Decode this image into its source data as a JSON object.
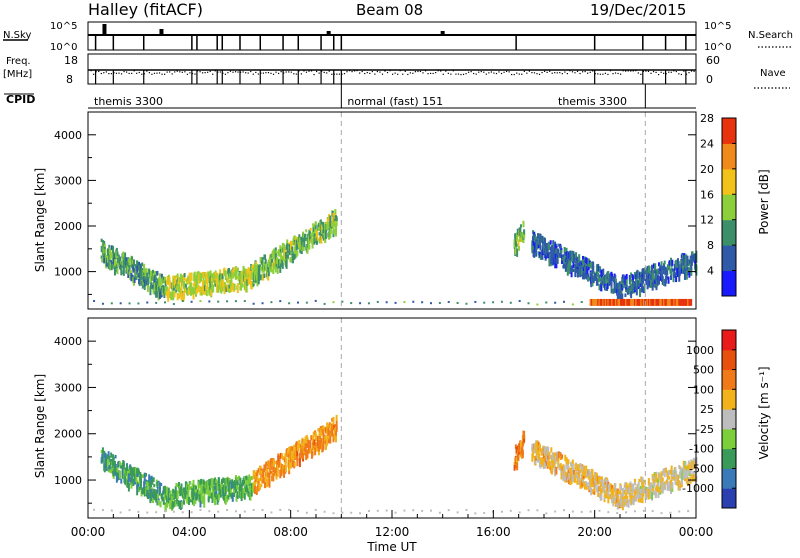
{
  "header": {
    "station": "Halley (fitACF)",
    "beam": "Beam 08",
    "date": "19/Dec/2015"
  },
  "status_panels": {
    "nsky_label": "N.Sky",
    "nsky_ticks": [
      "10^5",
      "10^0"
    ],
    "nsearch_label": "N.Search",
    "nsearch_ticks": [
      "10^5",
      "10^0"
    ],
    "freq_label_line1": "Freq.",
    "freq_label_line2": "[MHz]",
    "freq_ticks": [
      "18",
      "8"
    ],
    "nave_label": "Nave",
    "nave_ticks": [
      "60",
      "0"
    ],
    "cpid_label": "CPID",
    "cpid_segments": [
      {
        "label": "themis 3300",
        "start_hr": 0.0,
        "end_hr": 10.0
      },
      {
        "label": "normal (fast) 151",
        "start_hr": 10.0,
        "end_hr": 22.0
      },
      {
        "label": "themis 3300",
        "start_hr": 22.0,
        "end_hr": 24.0
      }
    ]
  },
  "chart_data": [
    {
      "type": "heatmap",
      "name": "power",
      "ylabel": "Slant Range [km]",
      "xlim": [
        0,
        24
      ],
      "ylim": [
        180,
        4500
      ],
      "yticks": [
        "1000",
        "2000",
        "3000",
        "4000"
      ],
      "colorbar_label": "Power [dB]",
      "colorbar_ticks": [
        "4",
        "8",
        "12",
        "16",
        "20",
        "24",
        "28"
      ],
      "colorbar_colors": [
        "#1a1aff",
        "#2e5aa8",
        "#3d8f6a",
        "#8ccf3a",
        "#f2c21a",
        "#f08a1a",
        "#e8340e"
      ],
      "dashed_lines_hr": [
        10.0,
        22.0
      ],
      "features": [
        {
          "t_start": 0.5,
          "t_end": 3.0,
          "r_start": 1500,
          "r_end": 700,
          "level": 0.35
        },
        {
          "t_start": 3.0,
          "t_end": 6.5,
          "r_start": 700,
          "r_end": 950,
          "level": 0.55
        },
        {
          "t_start": 6.5,
          "t_end": 9.8,
          "r_start": 1000,
          "r_end": 2200,
          "level": 0.45
        },
        {
          "t_start": 16.8,
          "t_end": 17.2,
          "r_start": 1600,
          "r_end": 2000,
          "level": 0.45
        },
        {
          "t_start": 17.5,
          "t_end": 21.0,
          "r_start": 1700,
          "r_end": 700,
          "level": 0.2
        },
        {
          "t_start": 21.0,
          "t_end": 24.0,
          "r_start": 700,
          "r_end": 1300,
          "level": 0.2
        }
      ],
      "ground_scatter": {
        "t_start": 19.8,
        "t_end": 23.8,
        "r_start": 250,
        "r_end": 400,
        "level": 0.95
      }
    },
    {
      "type": "heatmap",
      "name": "velocity",
      "xlabel": "Time UT",
      "ylabel": "Slant Range [km]",
      "xlim": [
        0,
        24
      ],
      "ylim": [
        180,
        4500
      ],
      "xticks": [
        "00:00",
        "04:00",
        "08:00",
        "12:00",
        "16:00",
        "20:00",
        "00:00"
      ],
      "yticks": [
        "1000",
        "2000",
        "3000",
        "4000"
      ],
      "colorbar_label": "Velocity [m s⁻¹]",
      "colorbar_ticks": [
        "1000",
        "500",
        "100",
        "25",
        "-25",
        "-100",
        "-500",
        "-1000"
      ],
      "colorbar_colors": [
        "#2a3fb0",
        "#3a7ab8",
        "#3a9a5a",
        "#7ccf3a",
        "#bdbdbd",
        "#f2b21a",
        "#f07a1a",
        "#e8500e",
        "#e81a1a"
      ],
      "dashed_lines_hr": [
        10.0,
        22.0
      ],
      "features": [
        {
          "t_start": 0.5,
          "t_end": 3.0,
          "r_start": 1500,
          "r_end": 700,
          "v_level": 0.25
        },
        {
          "t_start": 3.0,
          "t_end": 6.5,
          "r_start": 700,
          "r_end": 950,
          "v_level": 0.3
        },
        {
          "t_start": 6.5,
          "t_end": 9.8,
          "r_start": 1000,
          "r_end": 2200,
          "v_level": 0.7
        },
        {
          "t_start": 16.8,
          "t_end": 17.2,
          "r_start": 1500,
          "r_end": 1900,
          "v_level": 0.75
        },
        {
          "t_start": 17.5,
          "t_end": 21.0,
          "r_start": 1700,
          "r_end": 700,
          "v_level": 0.6
        },
        {
          "t_start": 21.0,
          "t_end": 24.0,
          "r_start": 700,
          "r_end": 1300,
          "v_level": 0.55
        }
      ]
    }
  ]
}
